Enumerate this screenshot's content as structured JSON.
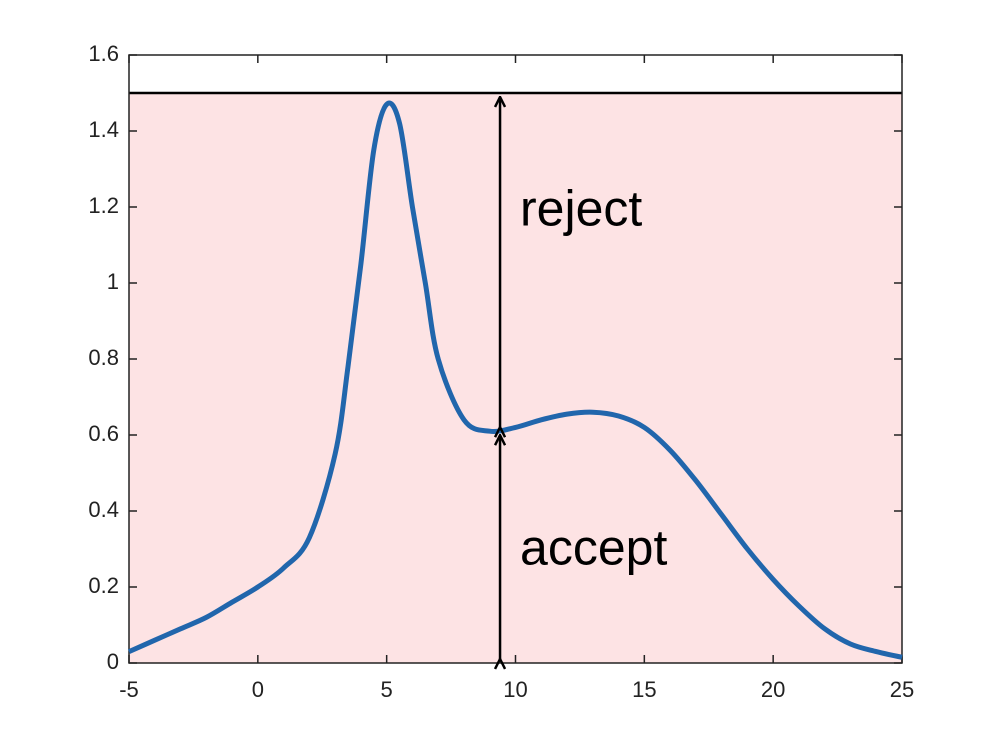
{
  "chart_data": {
    "type": "line",
    "x": [
      -5,
      -4,
      -3,
      -2,
      -1,
      0,
      1,
      2,
      3,
      3.5,
      4,
      4.5,
      5,
      5.5,
      6,
      6.5,
      7,
      8,
      9,
      10,
      11,
      12,
      13,
      14,
      15,
      16,
      17,
      18,
      19,
      20,
      21,
      22,
      23,
      24,
      25
    ],
    "series": [
      {
        "color": "#2166ac",
        "values": [
          0.03,
          0.06,
          0.09,
          0.12,
          0.16,
          0.2,
          0.25,
          0.33,
          0.55,
          0.78,
          1.05,
          1.35,
          1.47,
          1.42,
          1.2,
          1.0,
          0.8,
          0.64,
          0.61,
          0.62,
          0.64,
          0.655,
          0.66,
          0.65,
          0.62,
          0.56,
          0.48,
          0.39,
          0.3,
          0.22,
          0.15,
          0.09,
          0.05,
          0.03,
          0.015
        ]
      }
    ],
    "shade_top": 1.5,
    "shade_color": "#fde3e4",
    "arrows": [
      {
        "label": "reject",
        "x": 9.4,
        "from": 0.61,
        "to": 1.5
      },
      {
        "label": "accept",
        "x": 9.4,
        "from": 0,
        "to": 0.61
      }
    ],
    "xlim": [
      -5,
      25
    ],
    "xticks": [
      -5,
      0,
      5,
      10,
      15,
      20,
      25
    ],
    "ylim": [
      0,
      1.6
    ],
    "yticks": [
      0,
      0.2,
      0.4,
      0.6,
      0.8,
      1,
      1.2,
      1.4,
      1.6
    ]
  }
}
